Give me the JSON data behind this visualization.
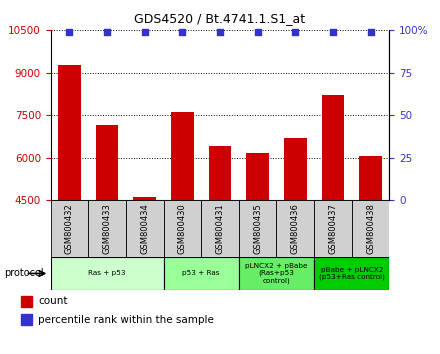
{
  "title": "GDS4520 / Bt.4741.1.S1_at",
  "samples": [
    "GSM800432",
    "GSM800433",
    "GSM800434",
    "GSM800430",
    "GSM800431",
    "GSM800435",
    "GSM800436",
    "GSM800437",
    "GSM800438"
  ],
  "counts": [
    9250,
    7150,
    4620,
    7600,
    6400,
    6150,
    6700,
    8200,
    6050
  ],
  "percentile_ranks": [
    99,
    99,
    99,
    99,
    99,
    99,
    99,
    99,
    99
  ],
  "ylim_left": [
    4500,
    10500
  ],
  "ylim_right": [
    0,
    100
  ],
  "yticks_left": [
    4500,
    6000,
    7500,
    9000,
    10500
  ],
  "yticks_right": [
    0,
    25,
    50,
    75,
    100
  ],
  "bar_color": "#cc0000",
  "dot_color": "#3333cc",
  "bar_width": 0.6,
  "protocol_groups": [
    {
      "label": "Ras + p53",
      "indices": [
        0,
        1,
        2
      ],
      "color": "#ccffcc"
    },
    {
      "label": "p53 + Ras",
      "indices": [
        3,
        4
      ],
      "color": "#99ff99"
    },
    {
      "label": "pLNCX2 + pBabe\n(Ras+p53\ncontrol)",
      "indices": [
        5,
        6
      ],
      "color": "#66ee66"
    },
    {
      "label": "pBabe + pLNCX2\n(p53+Ras control)",
      "indices": [
        7,
        8
      ],
      "color": "#00cc00"
    }
  ],
  "legend_count_label": "count",
  "legend_pct_label": "percentile rank within the sample",
  "protocol_label": "protocol",
  "tick_label_color_left": "#cc0000",
  "tick_label_color_right": "#3333cc",
  "sample_box_color": "#d0d0d0"
}
